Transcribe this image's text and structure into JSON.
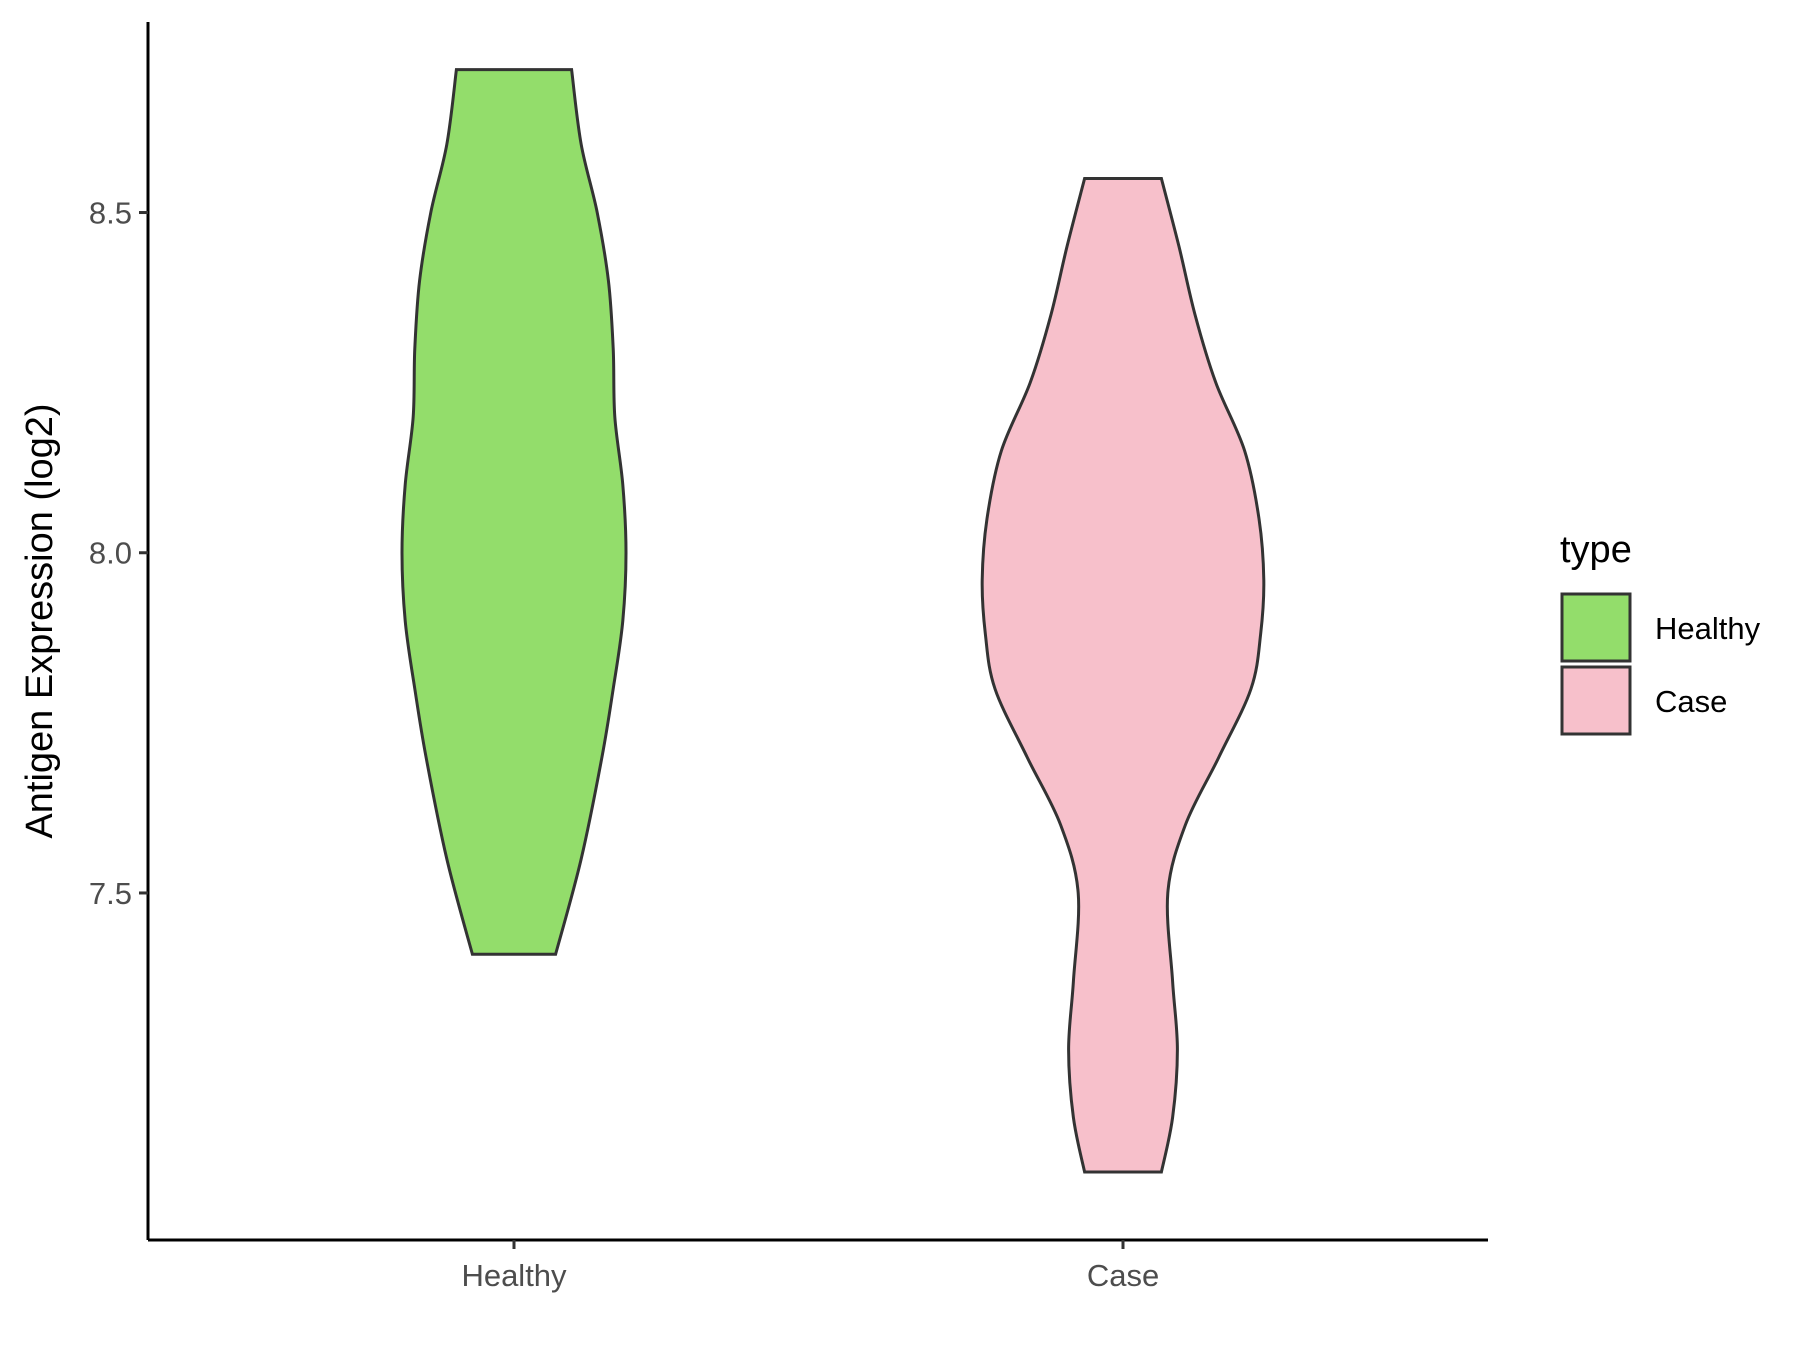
{
  "chart_data": {
    "type": "violin",
    "ylabel": "Antigen Expression (log2)",
    "xlabel": "",
    "categories": [
      "Healthy",
      "Case"
    ],
    "y_ticks": [
      7.5,
      8.0,
      8.5
    ],
    "y_tick_labels": [
      "7.5",
      "8.0",
      "8.5"
    ],
    "ylim": [
      6.99,
      8.78
    ],
    "grid": false,
    "legend": {
      "title": "type",
      "position": "right",
      "entries": [
        {
          "label": "Healthy",
          "color": "#93dd6b"
        },
        {
          "label": "Case",
          "color": "#f7c0cb"
        }
      ]
    },
    "series": [
      {
        "name": "Healthy",
        "color": "#93dd6b",
        "min": 7.41,
        "max": 8.71,
        "density_profile": [
          [
            7.41,
            0.26
          ],
          [
            7.55,
            0.42
          ],
          [
            7.7,
            0.55
          ],
          [
            7.8,
            0.62
          ],
          [
            7.9,
            0.68
          ],
          [
            8.0,
            0.7
          ],
          [
            8.1,
            0.68
          ],
          [
            8.2,
            0.63
          ],
          [
            8.3,
            0.62
          ],
          [
            8.4,
            0.59
          ],
          [
            8.5,
            0.52
          ],
          [
            8.6,
            0.42
          ],
          [
            8.71,
            0.36
          ]
        ]
      },
      {
        "name": "Case",
        "color": "#f7c0cb",
        "min": 7.09,
        "max": 8.55,
        "density_profile": [
          [
            7.09,
            0.24
          ],
          [
            7.17,
            0.31
          ],
          [
            7.27,
            0.34
          ],
          [
            7.37,
            0.31
          ],
          [
            7.5,
            0.28
          ],
          [
            7.6,
            0.39
          ],
          [
            7.7,
            0.6
          ],
          [
            7.8,
            0.8
          ],
          [
            7.88,
            0.86
          ],
          [
            7.96,
            0.88
          ],
          [
            8.05,
            0.85
          ],
          [
            8.15,
            0.76
          ],
          [
            8.25,
            0.58
          ],
          [
            8.35,
            0.45
          ],
          [
            8.45,
            0.35
          ],
          [
            8.55,
            0.24
          ]
        ]
      }
    ]
  }
}
